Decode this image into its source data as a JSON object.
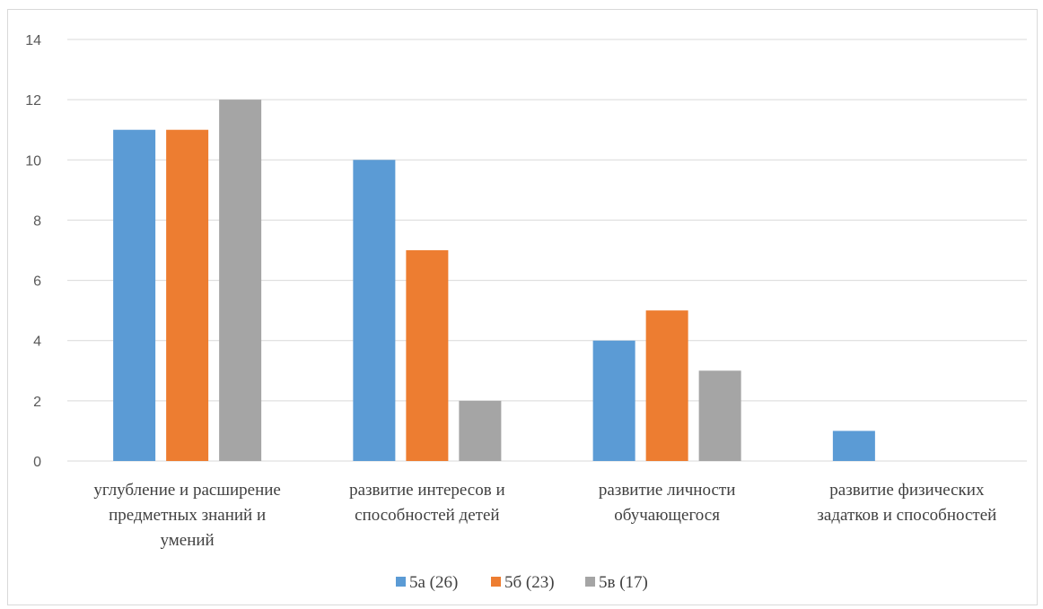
{
  "chart_data": {
    "type": "bar",
    "categories": [
      [
        "углубление и расширение",
        "предметных знаний и",
        "умений"
      ],
      [
        "развитие интересов и",
        "способностей детей"
      ],
      [
        "развитие личности",
        "обучающегося"
      ],
      [
        "развитие физических",
        "задатков и способностей"
      ]
    ],
    "series": [
      {
        "name": "5а (26)",
        "color": "#5b9bd5",
        "values": [
          11,
          10,
          4,
          1
        ]
      },
      {
        "name": "5б (23)",
        "color": "#ed7d31",
        "values": [
          11,
          7,
          5,
          0
        ]
      },
      {
        "name": "5в (17)",
        "color": "#a5a5a5",
        "values": [
          12,
          2,
          3,
          0
        ]
      }
    ],
    "ylim": [
      0,
      14
    ],
    "yticks": [
      0,
      2,
      4,
      6,
      8,
      10,
      12,
      14
    ],
    "grid": true,
    "legend": "bottom"
  }
}
